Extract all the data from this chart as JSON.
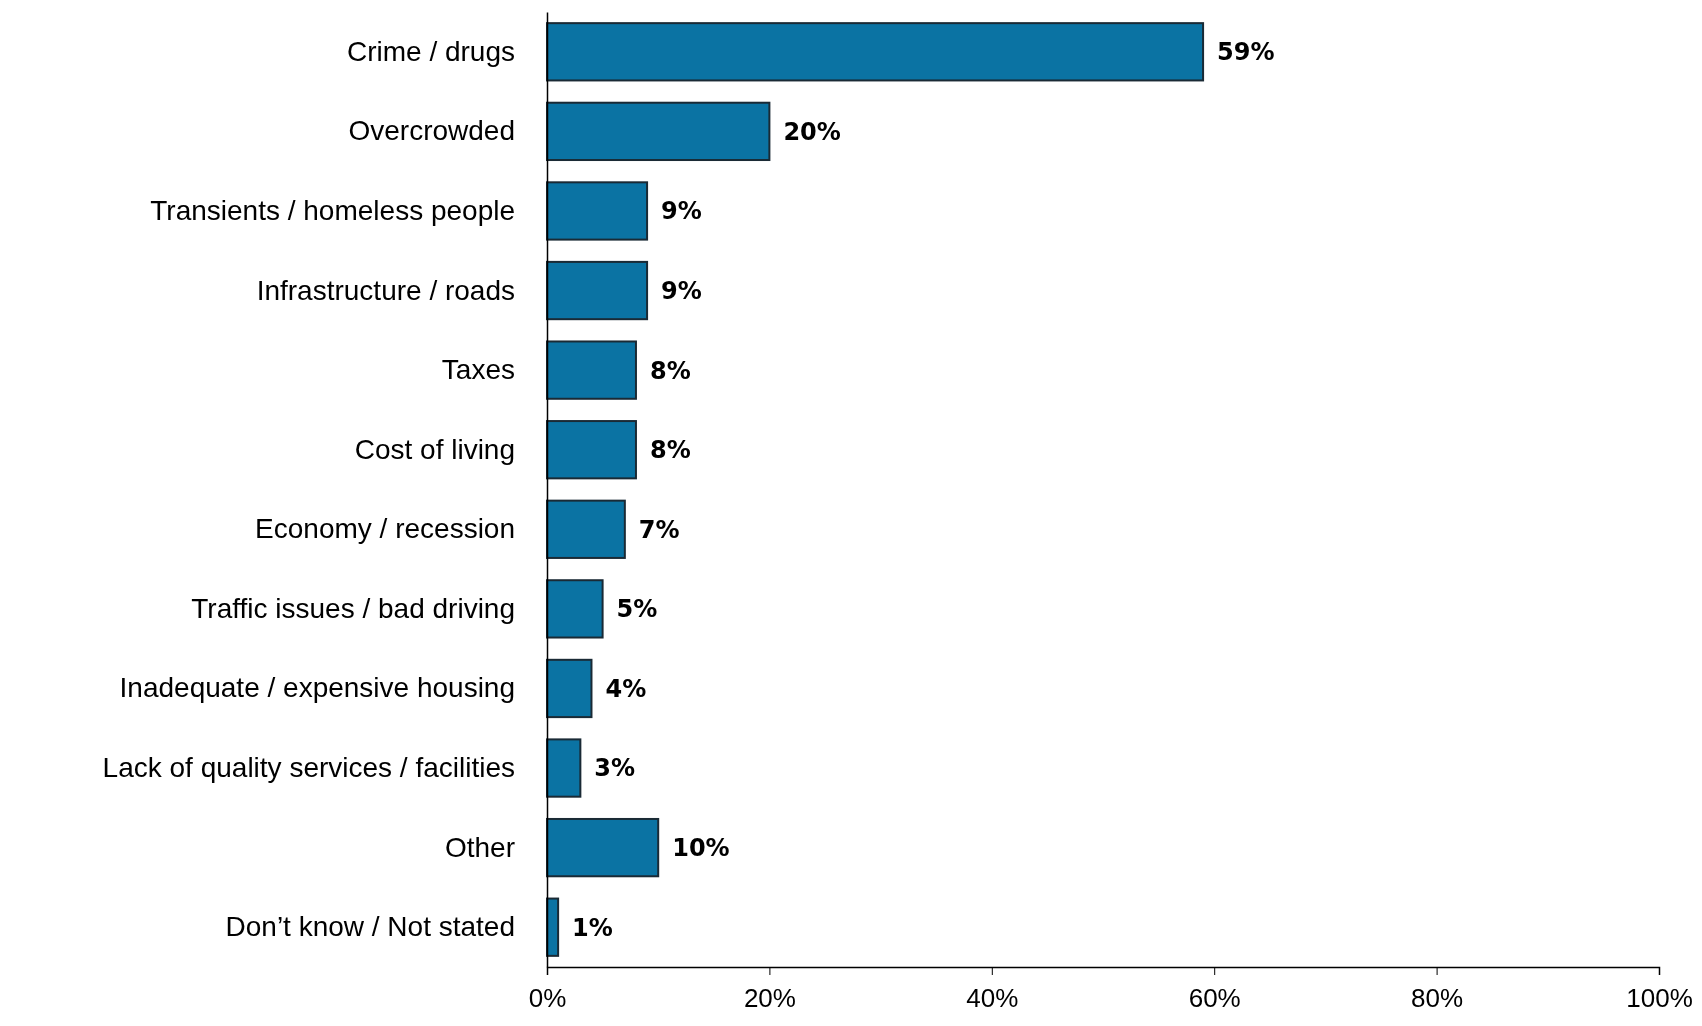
{
  "chart_data": {
    "type": "bar",
    "orientation": "horizontal",
    "categories": [
      "Crime / drugs",
      "Overcrowded",
      "Transients / homeless people",
      "Infrastructure / roads",
      "Taxes",
      "Cost of living",
      "Economy / recession",
      "Traffic issues / bad driving",
      "Inadequate / expensive housing",
      "Lack of quality services / facilities",
      "Other",
      "Don’t know / Not stated"
    ],
    "values": [
      59,
      20,
      9,
      9,
      8,
      8,
      7,
      5,
      4,
      3,
      10,
      1
    ],
    "value_labels": [
      "59%",
      "20%",
      "9%",
      "9%",
      "8%",
      "8%",
      "7%",
      "5%",
      "4%",
      "3%",
      "10%",
      "1%"
    ],
    "color": "#0b73a3",
    "xlim": [
      0,
      100
    ],
    "xticks": [
      {
        "value": 0,
        "label": "0%"
      },
      {
        "value": 20,
        "label": "20%"
      },
      {
        "value": 40,
        "label": "40%"
      },
      {
        "value": 60,
        "label": "60%"
      },
      {
        "value": 80,
        "label": "80%"
      },
      {
        "value": 100,
        "label": "100%"
      }
    ],
    "grid": false
  }
}
